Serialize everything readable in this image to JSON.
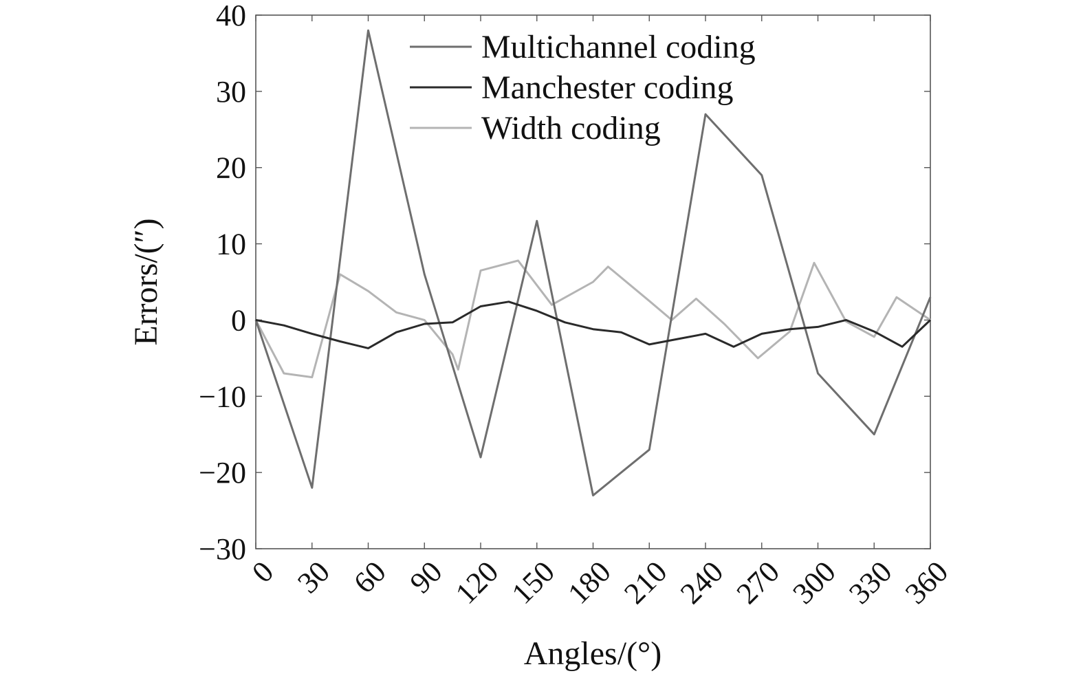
{
  "chart_data": {
    "type": "line",
    "xlabel": "Angles/(°)",
    "ylabel": "Errors/(″)",
    "xlim": [
      0,
      360
    ],
    "ylim": [
      -30,
      40
    ],
    "xticks": [
      0,
      30,
      60,
      90,
      120,
      150,
      180,
      210,
      240,
      270,
      300,
      330,
      360
    ],
    "yticks": [
      -30,
      -20,
      -10,
      0,
      10,
      20,
      30,
      40
    ],
    "ytick_labels": [
      "−30",
      "−20",
      "−10",
      "0",
      "10",
      "20",
      "30",
      "40"
    ],
    "grid": false,
    "legend_position": "top-center",
    "series": [
      {
        "name": "Multichannel coding",
        "color": "#6e6e6e",
        "x": [
          0,
          30,
          60,
          90,
          120,
          150,
          180,
          210,
          240,
          270,
          300,
          330,
          360
        ],
        "y": [
          0,
          -22,
          38,
          6,
          -18,
          13,
          -23,
          -17,
          27,
          19,
          -7,
          -15,
          3
        ]
      },
      {
        "name": "Manchester coding",
        "color": "#2a2a2a",
        "x": [
          0,
          15,
          30,
          45,
          60,
          75,
          90,
          105,
          120,
          135,
          150,
          165,
          180,
          195,
          210,
          225,
          240,
          255,
          270,
          285,
          300,
          315,
          330,
          345,
          360
        ],
        "y": [
          0,
          -0.7,
          -1.8,
          -2.8,
          -3.7,
          -1.6,
          -0.5,
          -0.3,
          1.8,
          2.4,
          1.2,
          -0.3,
          -1.2,
          -1.6,
          -3.2,
          -2.5,
          -1.8,
          -3.5,
          -1.8,
          -1.2,
          -0.9,
          0,
          -1.5,
          -3.5,
          0
        ]
      },
      {
        "name": "Width coding",
        "color": "#b4b4b4",
        "x": [
          0,
          15,
          30,
          45,
          60,
          75,
          90,
          105,
          108,
          120,
          140,
          158,
          180,
          188,
          210,
          222,
          235,
          250,
          268,
          285,
          298,
          315,
          330,
          342,
          360
        ],
        "y": [
          0,
          -7,
          -7.5,
          6,
          3.8,
          1,
          0,
          -4.5,
          -6.5,
          6.5,
          7.8,
          2,
          5,
          7,
          2.5,
          0,
          2.8,
          -0.5,
          -5,
          -1.5,
          7.5,
          -0.2,
          -2.2,
          3,
          0
        ]
      }
    ]
  }
}
